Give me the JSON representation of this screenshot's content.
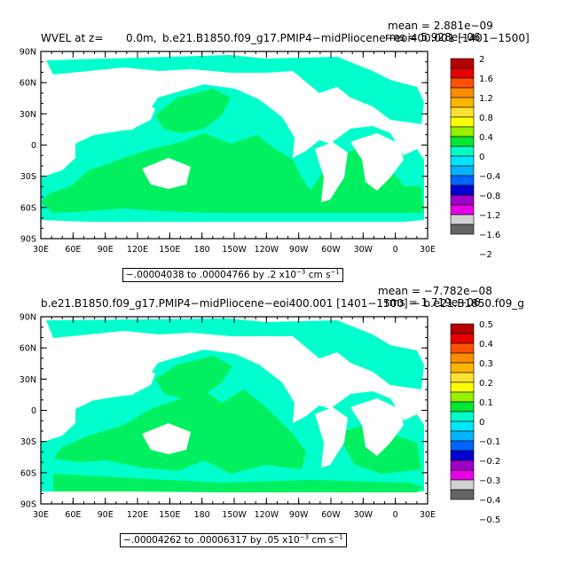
{
  "panels": [
    {
      "title_left": "WVEL at z=",
      "title_depth": "0.0m,",
      "title_case": "b.e21.B1850.f09_g17.PMIP4−midPliocene−eoi400.001 [1401−1500]",
      "mean_text": "mean = 2.881e−09",
      "rms_text": "rms = 5.928e−06",
      "range_pre": "−.00004038 to .00004766 by .2 x10",
      "range_exp": "−3",
      "range_unit": " cm s",
      "range_unit_exp": "−1",
      "colorbar_labels": [
        "2",
        "1.6",
        "1.2",
        "0.8",
        "0.4",
        "0",
        "−0.4",
        "−0.8",
        "−1.2",
        "−1.6",
        "−2"
      ]
    },
    {
      "title_left": "",
      "title_depth": "",
      "title_case": "b.e21.B1850.f09_g17.PMIP4−midPliocene−eoi400.001 [1401−1500] − b.e21.B1850.f09_g",
      "mean_text": "mean = −7.782e−08",
      "rms_text": "rms = 1.719e−06",
      "range_pre": "−.00004262 to .00006317 by .05 x10",
      "range_exp": "−3",
      "range_unit": " cm s",
      "range_unit_exp": "−1",
      "colorbar_labels": [
        "0.5",
        "0.4",
        "0.3",
        "0.2",
        "0.1",
        "0",
        "−0.1",
        "−0.2",
        "−0.3",
        "−0.4",
        "−0.5"
      ]
    }
  ],
  "lat_labels": [
    "90N",
    "60N",
    "30N",
    "0",
    "30S",
    "60S",
    "90S"
  ],
  "lon_labels": [
    "30E",
    "60E",
    "90E",
    "120E",
    "150E",
    "180",
    "150W",
    "120W",
    "90W",
    "60W",
    "30W",
    "0",
    "30E"
  ],
  "colors": {
    "ocean_light": "#00ffcc",
    "ocean_green": "#00f060",
    "land": "#ffffff",
    "colorbar": [
      "#b40000",
      "#e60000",
      "#ff5000",
      "#ff8c00",
      "#ffb400",
      "#ffe132",
      "#ffff00",
      "#96f000",
      "#00e632",
      "#00ffc8",
      "#00e6ff",
      "#00b4ff",
      "#0064ff",
      "#0000d2",
      "#a000c8",
      "#e600e6",
      "#d2d2d2",
      "#646464"
    ]
  }
}
